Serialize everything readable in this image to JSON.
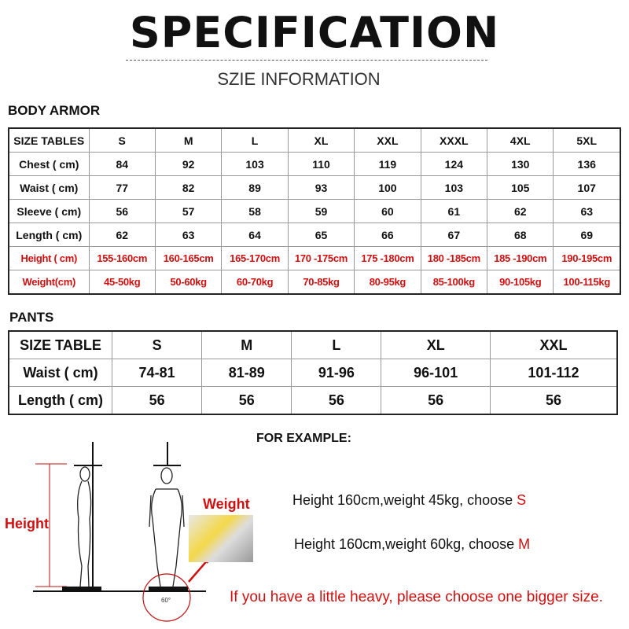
{
  "header": {
    "title": "SPECIFICATION",
    "subtitle": "SZIE INFORMATION"
  },
  "body_armor": {
    "section": "BODY ARMOR",
    "headers": [
      "SIZE TABLES",
      "S",
      "M",
      "L",
      "XL",
      "XXL",
      "XXXL",
      "4XL",
      "5XL"
    ],
    "rows": [
      {
        "label": "Chest ( cm)",
        "values": [
          "84",
          "92",
          "103",
          "110",
          "119",
          "124",
          "130",
          "136"
        ]
      },
      {
        "label": "Waist ( cm)",
        "values": [
          "77",
          "82",
          "89",
          "93",
          "100",
          "103",
          "105",
          "107"
        ]
      },
      {
        "label": "Sleeve ( cm)",
        "values": [
          "56",
          "57",
          "58",
          "59",
          "60",
          "61",
          "62",
          "63"
        ]
      },
      {
        "label": "Length ( cm)",
        "values": [
          "62",
          "63",
          "64",
          "65",
          "66",
          "67",
          "68",
          "69"
        ]
      },
      {
        "label": "Height ( cm)",
        "values": [
          "155-160cm",
          "160-165cm",
          "165-170cm",
          "170 -175cm",
          "175 -180cm",
          "180 -185cm",
          "185 -190cm",
          "190-195cm"
        ],
        "red": true
      },
      {
        "label": "Weight(cm)",
        "values": [
          "45-50kg",
          "50-60kg",
          "60-70kg",
          "70-85kg",
          "80-95kg",
          "85-100kg",
          "90-105kg",
          "100-115kg"
        ],
        "red": true
      }
    ]
  },
  "pants": {
    "section": "PANTS",
    "headers": [
      "SIZE TABLE",
      "S",
      "M",
      "L",
      "XL",
      "XXL"
    ],
    "rows": [
      {
        "label": "Waist ( cm)",
        "values": [
          "74-81",
          "81-89",
          "91-96",
          "96-101",
          "101-112"
        ]
      },
      {
        "label": "Length ( cm)",
        "values": [
          "56",
          "56",
          "56",
          "56",
          "56"
        ]
      }
    ]
  },
  "example": {
    "title": "FOR EXAMPLE:",
    "line1": "Height 160cm,weight 45kg, choose ",
    "line1_size": "S",
    "line2": "Height 160cm,weight 60kg, choose ",
    "line2_size": "M",
    "note": "If you have a little heavy, please choose one bigger size.",
    "height_label": "Height",
    "weight_label": "Weight",
    "angle_label": "60°"
  },
  "colors": {
    "accent": "#d01010"
  }
}
